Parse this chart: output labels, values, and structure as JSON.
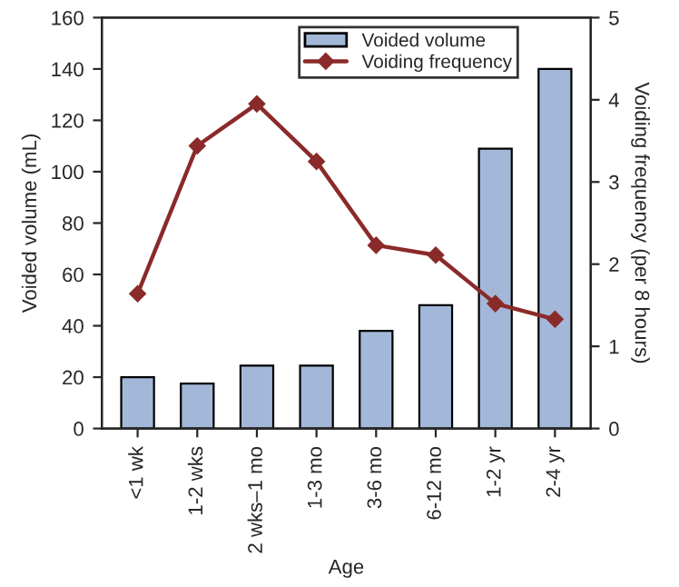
{
  "chart_data": {
    "type": "bar",
    "xlabel": "Age",
    "ylabel": "Voided volume (mL)",
    "y2label": "Voiding frequency (per 8 hours)",
    "categories": [
      "<1 wk",
      "1-2 wks",
      "2 wks–1 mo",
      "1-3 mo",
      "3-6 mo",
      "6-12 mo",
      "1-2 yr",
      "2-4 yr"
    ],
    "series": [
      {
        "name": "Voided volume",
        "color": "#a3b8d8",
        "values": [
          20,
          17.5,
          24.5,
          24.5,
          38,
          48,
          109,
          140
        ]
      },
      {
        "name": "Voiding frequency",
        "type": "line",
        "axis": "y2",
        "color": "#8b2a2a",
        "marker": "diamond",
        "values": [
          1.64,
          3.44,
          3.95,
          3.25,
          2.23,
          2.11,
          1.52,
          1.33
        ]
      }
    ],
    "ylim": [
      0,
      160
    ],
    "yticks": [
      0,
      20,
      40,
      60,
      80,
      100,
      120,
      140,
      160
    ],
    "y2lim": [
      0,
      5
    ],
    "y2ticks": [
      0,
      1,
      2,
      3,
      4,
      5
    ],
    "grid": false,
    "legend": "top right"
  }
}
